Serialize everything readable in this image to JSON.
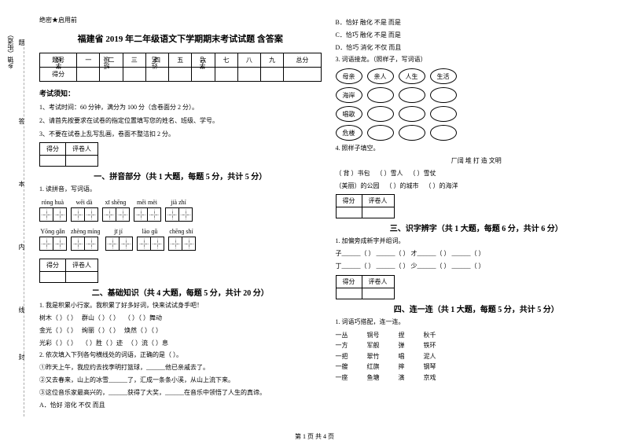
{
  "meta": {
    "secret": "绝密★启用前",
    "title": "福建省 2019 年二年级语文下学期期末考试试题 含答案"
  },
  "score_table": {
    "headers": [
      "题号",
      "一",
      "二",
      "三",
      "四",
      "五",
      "六",
      "七",
      "八",
      "九",
      "总分"
    ],
    "row_label": "得分"
  },
  "side": {
    "l1": "学号",
    "l2": "姓名",
    "l3": "班级",
    "l4": "学校",
    "l5": "乡镇（街道）",
    "m1": "题",
    "m2": "答",
    "m3": "本",
    "m4": "内",
    "m5": "线",
    "m6": "封"
  },
  "notice": {
    "header": "考试须知：",
    "n1": "1、考试时间：60 分钟，满分为 100 分（含卷面分 2 分）。",
    "n2": "2、请首先按要求在试卷的指定位置填写您的姓名、班级、学号。",
    "n3": "3、不要在试卷上乱写乱画，卷面不整洁扣 2 分。"
  },
  "gradebox": {
    "c1": "得分",
    "c2": "评卷人"
  },
  "sections": {
    "s1": "一、拼音部分（共 1 大题，每题 5 分，共计 5 分）",
    "s2": "二、基础知识（共 4 大题，每题 5 分，共计 20 分）",
    "s3": "三、识字辨字（共 1 大题，每题 6 分，共计 6 分）",
    "s4": "四、连一连（共 1 大题，每题 5 分，共计 5 分）"
  },
  "q_pinyin": {
    "prompt": "1. 读拼音，写词语。",
    "items": [
      {
        "py": "rónɡ huà",
        "cells": 2
      },
      {
        "py": "wēi dà",
        "cells": 2
      },
      {
        "py": "xī shēnɡ",
        "cells": 2
      },
      {
        "py": "mēi mèi",
        "cells": 2
      },
      {
        "py": "jià zhí",
        "cells": 2
      },
      {
        "py": "Yōnɡ ɡǎn",
        "cells": 2
      },
      {
        "py": "zhènɡ mínɡ",
        "cells": 2
      },
      {
        "py": "jī jí",
        "cells": 2
      },
      {
        "py": "lào ɡǔ",
        "cells": 2
      },
      {
        "py": "chēnɡ shí",
        "cells": 2
      }
    ]
  },
  "q_basics": {
    "q1": "1. 我是积累小行家。我积累了好多好词，快来试试身手吧！",
    "q1_items": [
      [
        "树木（   ）（   ）",
        "群山（   ）（   ）",
        "（   ）（   ）舞动"
      ],
      [
        "金光（   ）（   ）",
        "绚丽（   ）（   ）",
        "焕然（   ）（   ）"
      ],
      [
        "光彩（   ）（   ）",
        "（   ）胜（   ）迹",
        "（   ）流（   ）息"
      ]
    ],
    "q2": "2. 依次填入下列各句横线处的词语，正确的是（   ）。",
    "q2_s1": "①昨天上午，我应约去找李明打篮球，______他已亲戚去了。",
    "q2_s2": "②又去春来，山上的冰雪______了，汇成一条条小溪，从山上流下来。",
    "q2_s3": "③这位音乐家最高兴的，______获得了大奖，______在音乐中领悟了人生的真谛。",
    "opts": {
      "A": "A．恰好        溶化        不仅 而且",
      "B": "B．恰好        融化        不是 而是",
      "C": "C．恰巧        融化        不是 而是",
      "D": "D．恰巧        消化        不仅 而且"
    },
    "q3": "3. 词语接龙。（照样子，写词语）",
    "q3_words": [
      "母亲",
      "亲人",
      "人生",
      "生活",
      "海岸",
      "唱歌",
      "危楼"
    ],
    "q4": "4. 照样子填空。",
    "q4_head": "厂阔        堆        打        造        文明",
    "q4_ex1_a": "（ 背 ）书包",
    "q4_ex1_b": "（      ）雪人",
    "q4_ex1_c": "（      ）雪仗",
    "q4_ex2_a": "（美丽）的公园",
    "q4_ex2_b": "（      ）的城市",
    "q4_ex2_c": "（      ）的海洋"
  },
  "q_shizi": {
    "q1": "1. 加偏旁成新字并组词。",
    "line1": "子______（      ）    ______（      ）    才______（      ）    ______（      ）",
    "line2": "丁______（      ）    ______（      ）    少______（      ）    ______（      ）"
  },
  "q_lianyilian": {
    "q1": "1. 词语巧搭配，连一连。",
    "cols": [
      [
        "一丛",
        "一方",
        "一把",
        "一艘",
        "一座"
      ],
      [
        "铜号",
        "军舰",
        "翠竹",
        "红旗",
        "鱼塘"
      ],
      [
        "捏",
        "弹",
        "唱",
        "摔",
        "演"
      ],
      [
        "秋千",
        "铁环",
        "泥人",
        "钢琴",
        "京戏"
      ]
    ]
  },
  "footer": "第 1 页 共 4 页"
}
